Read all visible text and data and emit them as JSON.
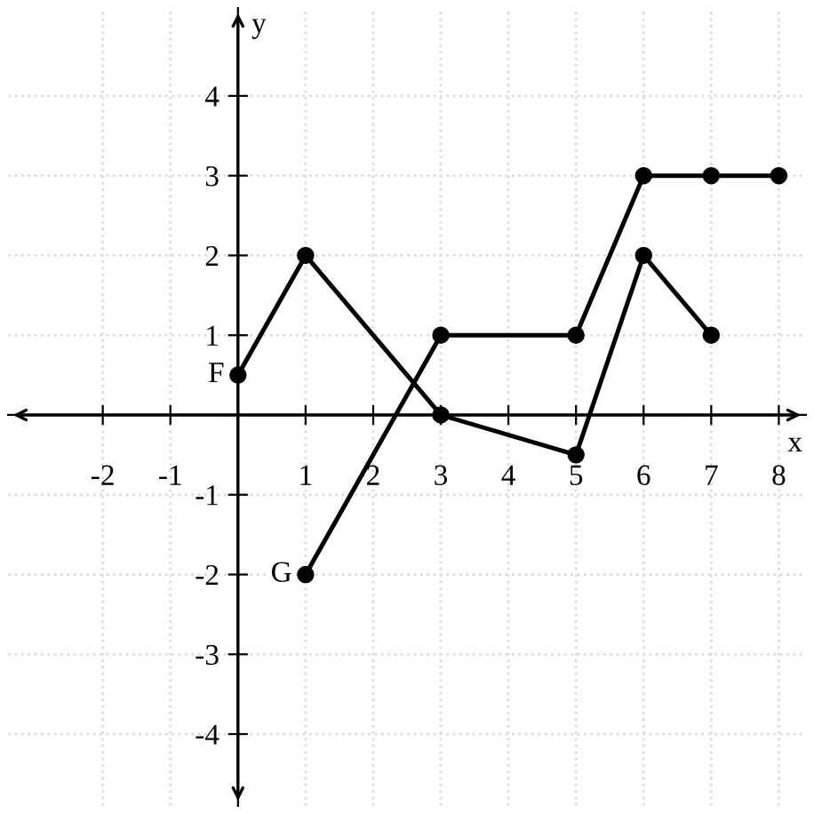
{
  "chart_data": {
    "type": "line",
    "xlabel": "x",
    "ylabel": "y",
    "xlim": [
      -3.4,
      8.4
    ],
    "ylim": [
      -4.9,
      5.1
    ],
    "xticks": [
      -2,
      -1,
      1,
      2,
      3,
      4,
      5,
      6,
      7,
      8
    ],
    "yticks": [
      -4,
      -3,
      -2,
      -1,
      1,
      2,
      3,
      4
    ],
    "grid": true,
    "marker": "circle",
    "line_style": "solid",
    "legend": false,
    "series": [
      {
        "name": "F",
        "color": "#000000",
        "x": [
          0,
          1,
          3,
          5,
          6,
          7
        ],
        "values": [
          0.5,
          2,
          0,
          -0.5,
          2,
          1
        ]
      },
      {
        "name": "G",
        "color": "#000000",
        "x": [
          1,
          3,
          5,
          6,
          7,
          8
        ],
        "values": [
          -2,
          1,
          1,
          3,
          3,
          3
        ]
      }
    ]
  }
}
